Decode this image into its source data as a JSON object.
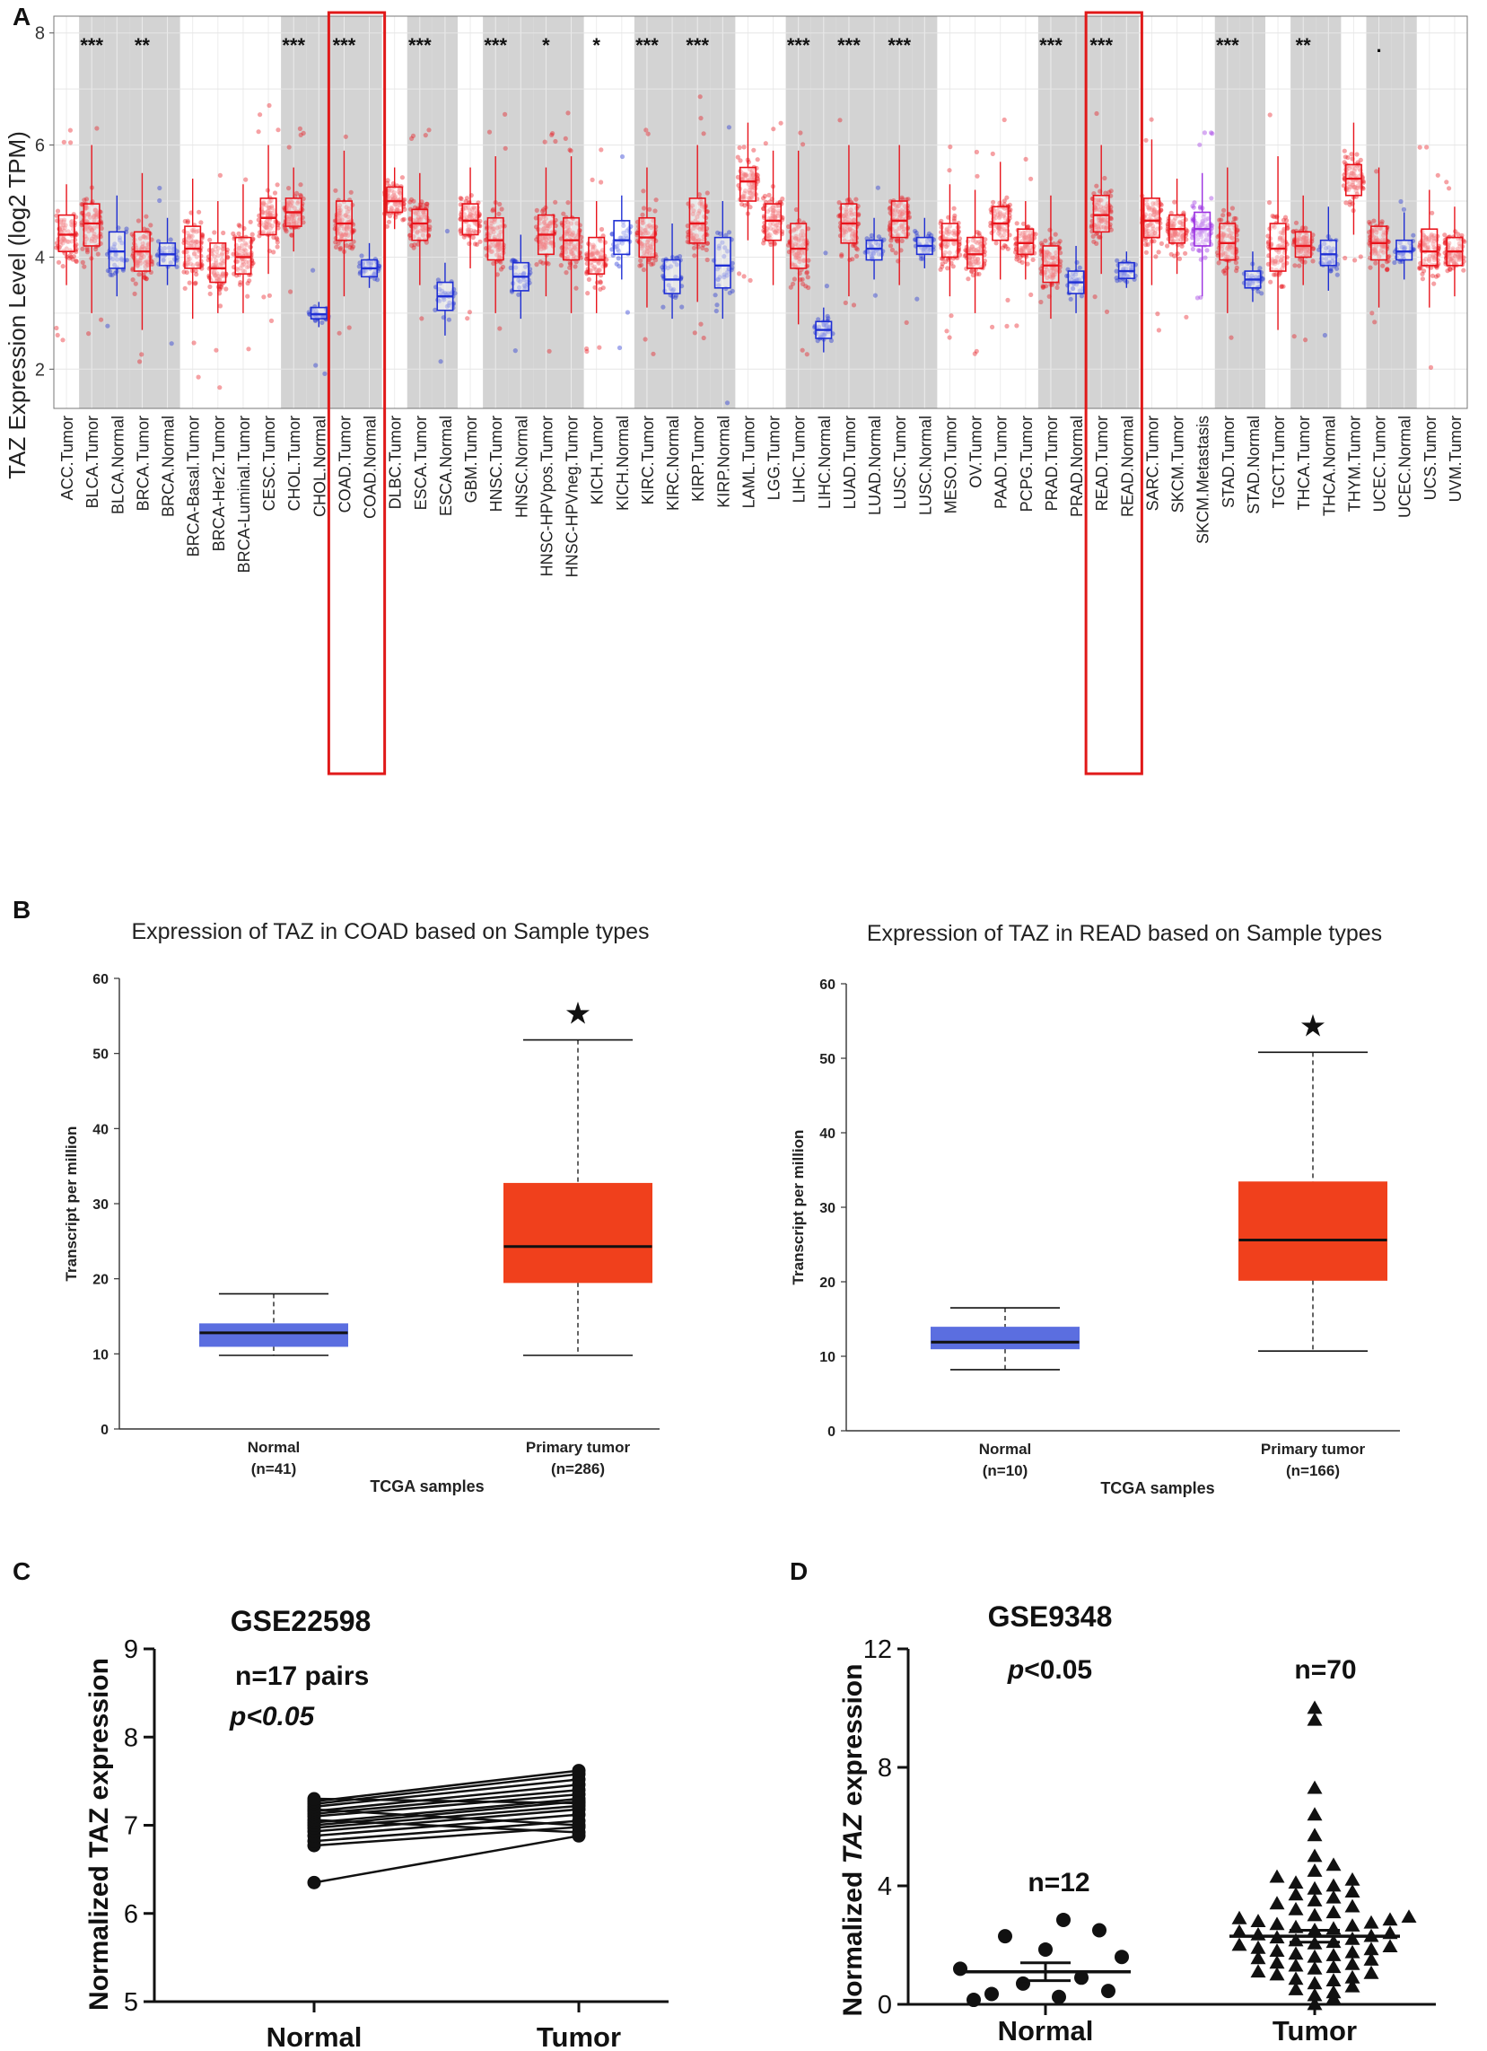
{
  "panel_labels": {
    "a": "A",
    "b": "B",
    "c": "C",
    "d": "D"
  },
  "chart_data": [
    {
      "panel": "A",
      "type": "box",
      "ylabel": "TAZ Expression Level (log2 TPM)",
      "ylim": [
        1.3,
        8.3
      ],
      "yticks": [
        2,
        4,
        6,
        8
      ],
      "colors": {
        "tumor": "#e8141c",
        "normal": "#1f2fd4",
        "metastasis": "#9b30e0",
        "shade": "#d3d3d3",
        "highlight": "#e01919"
      },
      "highlight": [
        "COAD.Tumor",
        "COAD.Normal",
        "READ.Tumor",
        "READ.Normal"
      ],
      "categories": [
        {
          "label": "ACC.Tumor",
          "kind": "tumor",
          "q1": 4.1,
          "med": 4.4,
          "q3": 4.75,
          "wlo": 3.5,
          "whi": 5.3,
          "sig": "",
          "shade": false
        },
        {
          "label": "BLCA.Tumor",
          "kind": "tumor",
          "q1": 4.2,
          "med": 4.6,
          "q3": 4.95,
          "wlo": 3.0,
          "whi": 6.0,
          "sig": "***",
          "shade": true
        },
        {
          "label": "BLCA.Normal",
          "kind": "normal",
          "q1": 3.8,
          "med": 4.1,
          "q3": 4.45,
          "wlo": 3.3,
          "whi": 5.1,
          "sig": "",
          "shade": true
        },
        {
          "label": "BRCA.Tumor",
          "kind": "tumor",
          "q1": 3.75,
          "med": 4.1,
          "q3": 4.45,
          "wlo": 2.7,
          "whi": 5.5,
          "sig": "**",
          "shade": true
        },
        {
          "label": "BRCA.Normal",
          "kind": "normal",
          "q1": 3.85,
          "med": 4.05,
          "q3": 4.25,
          "wlo": 3.5,
          "whi": 4.7,
          "sig": "",
          "shade": true
        },
        {
          "label": "BRCA-Basal.Tumor",
          "kind": "tumor",
          "q1": 3.8,
          "med": 4.15,
          "q3": 4.55,
          "wlo": 2.9,
          "whi": 5.4,
          "sig": "",
          "shade": false
        },
        {
          "label": "BRCA-Her2.Tumor",
          "kind": "tumor",
          "q1": 3.55,
          "med": 3.8,
          "q3": 4.25,
          "wlo": 3.0,
          "whi": 5.0,
          "sig": "",
          "shade": false
        },
        {
          "label": "BRCA-Luminal.Tumor",
          "kind": "tumor",
          "q1": 3.7,
          "med": 4.0,
          "q3": 4.35,
          "wlo": 3.0,
          "whi": 5.3,
          "sig": "",
          "shade": false
        },
        {
          "label": "CESC.Tumor",
          "kind": "tumor",
          "q1": 4.4,
          "med": 4.7,
          "q3": 5.05,
          "wlo": 3.7,
          "whi": 6.0,
          "sig": "",
          "shade": false
        },
        {
          "label": "CHOL.Tumor",
          "kind": "tumor",
          "q1": 4.55,
          "med": 4.8,
          "q3": 5.05,
          "wlo": 4.1,
          "whi": 5.6,
          "sig": "***",
          "shade": true
        },
        {
          "label": "CHOL.Normal",
          "kind": "normal",
          "q1": 2.9,
          "med": 2.98,
          "q3": 3.1,
          "wlo": 2.75,
          "whi": 3.2,
          "sig": "",
          "shade": true
        },
        {
          "label": "COAD.Tumor",
          "kind": "tumor",
          "q1": 4.3,
          "med": 4.6,
          "q3": 5.0,
          "wlo": 3.3,
          "whi": 5.9,
          "sig": "***",
          "shade": true
        },
        {
          "label": "COAD.Normal",
          "kind": "normal",
          "q1": 3.65,
          "med": 3.8,
          "q3": 3.95,
          "wlo": 3.45,
          "whi": 4.25,
          "sig": "",
          "shade": true
        },
        {
          "label": "DLBC.Tumor",
          "kind": "tumor",
          "q1": 4.8,
          "med": 5.0,
          "q3": 5.25,
          "wlo": 4.5,
          "whi": 5.6,
          "sig": "",
          "shade": false
        },
        {
          "label": "ESCA.Tumor",
          "kind": "tumor",
          "q1": 4.3,
          "med": 4.6,
          "q3": 4.85,
          "wlo": 3.5,
          "whi": 5.5,
          "sig": "***",
          "shade": true
        },
        {
          "label": "ESCA.Normal",
          "kind": "normal",
          "q1": 3.05,
          "med": 3.3,
          "q3": 3.55,
          "wlo": 2.6,
          "whi": 3.9,
          "sig": "",
          "shade": true
        },
        {
          "label": "GBM.Tumor",
          "kind": "tumor",
          "q1": 4.4,
          "med": 4.65,
          "q3": 4.95,
          "wlo": 3.8,
          "whi": 5.6,
          "sig": "",
          "shade": false
        },
        {
          "label": "HNSC.Tumor",
          "kind": "tumor",
          "q1": 3.95,
          "med": 4.3,
          "q3": 4.7,
          "wlo": 3.0,
          "whi": 5.8,
          "sig": "***",
          "shade": true
        },
        {
          "label": "HNSC.Normal",
          "kind": "normal",
          "q1": 3.4,
          "med": 3.65,
          "q3": 3.9,
          "wlo": 2.9,
          "whi": 4.4,
          "sig": "",
          "shade": true
        },
        {
          "label": "HNSC-HPVpos.Tumor",
          "kind": "tumor",
          "q1": 4.05,
          "med": 4.4,
          "q3": 4.75,
          "wlo": 3.3,
          "whi": 5.6,
          "sig": "*",
          "shade": true
        },
        {
          "label": "HNSC-HPVneg.Tumor",
          "kind": "tumor",
          "q1": 3.95,
          "med": 4.3,
          "q3": 4.7,
          "wlo": 3.0,
          "whi": 5.8,
          "sig": "",
          "shade": true
        },
        {
          "label": "KICH.Tumor",
          "kind": "tumor",
          "q1": 3.7,
          "med": 3.95,
          "q3": 4.35,
          "wlo": 3.0,
          "whi": 5.0,
          "sig": "*",
          "shade": false
        },
        {
          "label": "KICH.Normal",
          "kind": "normal",
          "q1": 4.05,
          "med": 4.3,
          "q3": 4.65,
          "wlo": 3.6,
          "whi": 5.1,
          "sig": "",
          "shade": false
        },
        {
          "label": "KIRC.Tumor",
          "kind": "tumor",
          "q1": 4.0,
          "med": 4.35,
          "q3": 4.7,
          "wlo": 3.1,
          "whi": 5.6,
          "sig": "***",
          "shade": true
        },
        {
          "label": "KIRC.Normal",
          "kind": "normal",
          "q1": 3.35,
          "med": 3.6,
          "q3": 3.95,
          "wlo": 2.9,
          "whi": 4.6,
          "sig": "",
          "shade": true
        },
        {
          "label": "KIRP.Tumor",
          "kind": "tumor",
          "q1": 4.25,
          "med": 4.6,
          "q3": 5.05,
          "wlo": 3.2,
          "whi": 6.0,
          "sig": "***",
          "shade": true
        },
        {
          "label": "KIRP.Normal",
          "kind": "normal",
          "q1": 3.45,
          "med": 3.85,
          "q3": 4.35,
          "wlo": 2.9,
          "whi": 5.0,
          "sig": "",
          "shade": true
        },
        {
          "label": "LAML.Tumor",
          "kind": "tumor",
          "q1": 5.0,
          "med": 5.35,
          "q3": 5.6,
          "wlo": 4.3,
          "whi": 6.4,
          "sig": "",
          "shade": false
        },
        {
          "label": "LGG.Tumor",
          "kind": "tumor",
          "q1": 4.3,
          "med": 4.65,
          "q3": 4.95,
          "wlo": 3.5,
          "whi": 5.9,
          "sig": "",
          "shade": false
        },
        {
          "label": "LIHC.Tumor",
          "kind": "tumor",
          "q1": 3.8,
          "med": 4.15,
          "q3": 4.6,
          "wlo": 2.8,
          "whi": 5.9,
          "sig": "***",
          "shade": true
        },
        {
          "label": "LIHC.Normal",
          "kind": "normal",
          "q1": 2.55,
          "med": 2.7,
          "q3": 2.85,
          "wlo": 2.3,
          "whi": 3.1,
          "sig": "",
          "shade": true
        },
        {
          "label": "LUAD.Tumor",
          "kind": "tumor",
          "q1": 4.25,
          "med": 4.6,
          "q3": 4.95,
          "wlo": 3.3,
          "whi": 6.0,
          "sig": "***",
          "shade": true
        },
        {
          "label": "LUAD.Normal",
          "kind": "normal",
          "q1": 3.95,
          "med": 4.15,
          "q3": 4.3,
          "wlo": 3.6,
          "whi": 4.7,
          "sig": "",
          "shade": true
        },
        {
          "label": "LUSC.Tumor",
          "kind": "tumor",
          "q1": 4.35,
          "med": 4.65,
          "q3": 5.0,
          "wlo": 3.5,
          "whi": 6.0,
          "sig": "***",
          "shade": true
        },
        {
          "label": "LUSC.Normal",
          "kind": "normal",
          "q1": 4.05,
          "med": 4.2,
          "q3": 4.35,
          "wlo": 3.8,
          "whi": 4.7,
          "sig": "",
          "shade": true
        },
        {
          "label": "MESO.Tumor",
          "kind": "tumor",
          "q1": 4.0,
          "med": 4.3,
          "q3": 4.6,
          "wlo": 3.3,
          "whi": 5.3,
          "sig": "",
          "shade": false
        },
        {
          "label": "OV.Tumor",
          "kind": "tumor",
          "q1": 3.8,
          "med": 4.05,
          "q3": 4.35,
          "wlo": 3.0,
          "whi": 5.2,
          "sig": "",
          "shade": false
        },
        {
          "label": "PAAD.Tumor",
          "kind": "tumor",
          "q1": 4.3,
          "med": 4.6,
          "q3": 4.9,
          "wlo": 3.6,
          "whi": 5.7,
          "sig": "",
          "shade": false
        },
        {
          "label": "PCPG.Tumor",
          "kind": "tumor",
          "q1": 4.05,
          "med": 4.25,
          "q3": 4.5,
          "wlo": 3.6,
          "whi": 5.0,
          "sig": "",
          "shade": false
        },
        {
          "label": "PRAD.Tumor",
          "kind": "tumor",
          "q1": 3.55,
          "med": 3.85,
          "q3": 4.2,
          "wlo": 2.9,
          "whi": 5.1,
          "sig": "***",
          "shade": true
        },
        {
          "label": "PRAD.Normal",
          "kind": "normal",
          "q1": 3.35,
          "med": 3.55,
          "q3": 3.75,
          "wlo": 3.0,
          "whi": 4.2,
          "sig": "",
          "shade": true
        },
        {
          "label": "READ.Tumor",
          "kind": "tumor",
          "q1": 4.45,
          "med": 4.75,
          "q3": 5.1,
          "wlo": 3.7,
          "whi": 6.0,
          "sig": "***",
          "shade": true
        },
        {
          "label": "READ.Normal",
          "kind": "normal",
          "q1": 3.62,
          "med": 3.75,
          "q3": 3.9,
          "wlo": 3.45,
          "whi": 4.1,
          "sig": "",
          "shade": true
        },
        {
          "label": "SARC.Tumor",
          "kind": "tumor",
          "q1": 4.35,
          "med": 4.65,
          "q3": 5.05,
          "wlo": 3.5,
          "whi": 6.1,
          "sig": "",
          "shade": false
        },
        {
          "label": "SKCM.Tumor",
          "kind": "tumor",
          "q1": 4.25,
          "med": 4.5,
          "q3": 4.75,
          "wlo": 3.7,
          "whi": 5.4,
          "sig": "",
          "shade": false
        },
        {
          "label": "SKCM.Metastasis",
          "kind": "metastasis",
          "q1": 4.2,
          "med": 4.5,
          "q3": 4.8,
          "wlo": 3.3,
          "whi": 5.5,
          "sig": "",
          "shade": false
        },
        {
          "label": "STAD.Tumor",
          "kind": "tumor",
          "q1": 3.95,
          "med": 4.25,
          "q3": 4.6,
          "wlo": 3.0,
          "whi": 5.6,
          "sig": "***",
          "shade": true
        },
        {
          "label": "STAD.Normal",
          "kind": "normal",
          "q1": 3.45,
          "med": 3.6,
          "q3": 3.75,
          "wlo": 3.2,
          "whi": 4.1,
          "sig": "",
          "shade": true
        },
        {
          "label": "TGCT.Tumor",
          "kind": "tumor",
          "q1": 3.75,
          "med": 4.15,
          "q3": 4.6,
          "wlo": 2.7,
          "whi": 5.8,
          "sig": "",
          "shade": false
        },
        {
          "label": "THCA.Tumor",
          "kind": "tumor",
          "q1": 4.0,
          "med": 4.2,
          "q3": 4.45,
          "wlo": 3.5,
          "whi": 5.1,
          "sig": "**",
          "shade": true
        },
        {
          "label": "THCA.Normal",
          "kind": "normal",
          "q1": 3.85,
          "med": 4.05,
          "q3": 4.3,
          "wlo": 3.4,
          "whi": 4.9,
          "sig": "",
          "shade": true
        },
        {
          "label": "THYM.Tumor",
          "kind": "tumor",
          "q1": 5.1,
          "med": 5.4,
          "q3": 5.65,
          "wlo": 4.4,
          "whi": 6.4,
          "sig": "",
          "shade": false
        },
        {
          "label": "UCEC.Tumor",
          "kind": "tumor",
          "q1": 3.95,
          "med": 4.25,
          "q3": 4.55,
          "wlo": 3.1,
          "whi": 5.6,
          "sig": ".",
          "shade": true
        },
        {
          "label": "UCEC.Normal",
          "kind": "normal",
          "q1": 3.95,
          "med": 4.1,
          "q3": 4.3,
          "wlo": 3.6,
          "whi": 4.8,
          "sig": "",
          "shade": true
        },
        {
          "label": "UCS.Tumor",
          "kind": "tumor",
          "q1": 3.85,
          "med": 4.1,
          "q3": 4.5,
          "wlo": 3.1,
          "whi": 5.2,
          "sig": "",
          "shade": false
        },
        {
          "label": "UVM.Tumor",
          "kind": "tumor",
          "q1": 3.85,
          "med": 4.1,
          "q3": 4.35,
          "wlo": 3.3,
          "whi": 4.9,
          "sig": "",
          "shade": false
        }
      ]
    },
    {
      "panel": "B-left",
      "type": "box",
      "title": "Expression of TAZ in COAD based on Sample types",
      "xlabel": "TCGA samples",
      "ylabel": "Transcript per million",
      "ylim": [
        0,
        60
      ],
      "yticks": [
        0,
        10,
        20,
        30,
        40,
        50,
        60
      ],
      "groups": [
        {
          "label": "Normal",
          "n": "(n=41)",
          "wlo": 9.8,
          "q1": 11.0,
          "med": 12.8,
          "q3": 14.0,
          "whi": 18.0,
          "color": "#5b6ee0"
        },
        {
          "label": "Primary tumor",
          "n": "(n=286)",
          "wlo": 9.8,
          "q1": 19.5,
          "med": 24.3,
          "q3": 32.7,
          "whi": 51.8,
          "color": "#f0401c"
        }
      ],
      "marker": "★"
    },
    {
      "panel": "B-right",
      "type": "box",
      "title": "Expression of TAZ in READ based on Sample types",
      "xlabel": "TCGA samples",
      "ylabel": "Transcript per million",
      "ylim": [
        0,
        60
      ],
      "yticks": [
        0,
        10,
        20,
        30,
        40,
        50,
        60
      ],
      "groups": [
        {
          "label": "Normal",
          "n": "(n=10)",
          "wlo": 8.2,
          "q1": 11.0,
          "med": 11.9,
          "q3": 13.9,
          "whi": 16.5,
          "color": "#5b6ee0"
        },
        {
          "label": "Primary tumor",
          "n": "(n=166)",
          "wlo": 10.7,
          "q1": 20.2,
          "med": 25.6,
          "q3": 33.4,
          "whi": 50.8,
          "color": "#f0401c"
        }
      ],
      "marker": "★"
    },
    {
      "panel": "C",
      "type": "paired",
      "title": "GSE22598",
      "ylabel": "Normalized TAZ expression",
      "ylim": [
        5,
        9
      ],
      "yticks": [
        5,
        6,
        7,
        8,
        9
      ],
      "categories": [
        "Normal",
        "Tumor"
      ],
      "annotations": [
        "n=17 pairs",
        "p<0.05"
      ],
      "pairs": [
        [
          6.35,
          6.88
        ],
        [
          6.77,
          6.98
        ],
        [
          6.82,
          7.05
        ],
        [
          6.88,
          7.12
        ],
        [
          6.93,
          7.18
        ],
        [
          6.97,
          7.22
        ],
        [
          7.0,
          7.27
        ],
        [
          7.03,
          7.3
        ],
        [
          7.06,
          6.92
        ],
        [
          7.1,
          7.35
        ],
        [
          7.13,
          7.4
        ],
        [
          7.16,
          7.46
        ],
        [
          7.18,
          7.0
        ],
        [
          7.21,
          7.52
        ],
        [
          7.24,
          7.58
        ],
        [
          7.27,
          7.62
        ],
        [
          7.3,
          7.25
        ]
      ]
    },
    {
      "panel": "D",
      "type": "scatter",
      "title": "GSE9348",
      "ylabel_pre": "Normalized ",
      "ylabel_italic": "TAZ",
      "ylabel_post": " expression",
      "ylim": [
        0,
        12
      ],
      "yticks": [
        0,
        4,
        8,
        12
      ],
      "categories": [
        "Normal",
        "Tumor"
      ],
      "annotations": {
        "p_italic": "p",
        "p_rest": "<0.05",
        "n_normal": "n=12",
        "n_tumor": "n=70"
      },
      "normal": {
        "mean": 1.1,
        "sem": 0.3,
        "values": [
          0.15,
          0.25,
          0.35,
          0.45,
          0.7,
          0.9,
          1.2,
          1.6,
          1.85,
          2.3,
          2.5,
          2.85
        ]
      },
      "tumor": {
        "mean": 2.3,
        "sem": 0.2,
        "values": [
          0.0,
          0.2,
          0.3,
          0.4,
          0.5,
          0.6,
          0.7,
          0.8,
          0.85,
          0.9,
          1.0,
          1.05,
          1.1,
          1.2,
          1.25,
          1.3,
          1.35,
          1.4,
          1.5,
          1.55,
          1.6,
          1.65,
          1.7,
          1.75,
          1.8,
          1.85,
          1.9,
          1.95,
          2.0,
          2.05,
          2.1,
          2.15,
          2.2,
          2.25,
          2.3,
          2.35,
          2.4,
          2.45,
          2.5,
          2.55,
          2.6,
          2.65,
          2.7,
          2.75,
          2.8,
          2.85,
          2.9,
          2.95,
          3.0,
          3.1,
          3.2,
          3.3,
          3.4,
          3.5,
          3.6,
          3.7,
          3.8,
          3.9,
          4.0,
          4.1,
          4.2,
          4.3,
          4.5,
          4.7,
          5.0,
          5.7,
          6.4,
          7.3,
          9.6,
          10.0
        ]
      }
    }
  ]
}
